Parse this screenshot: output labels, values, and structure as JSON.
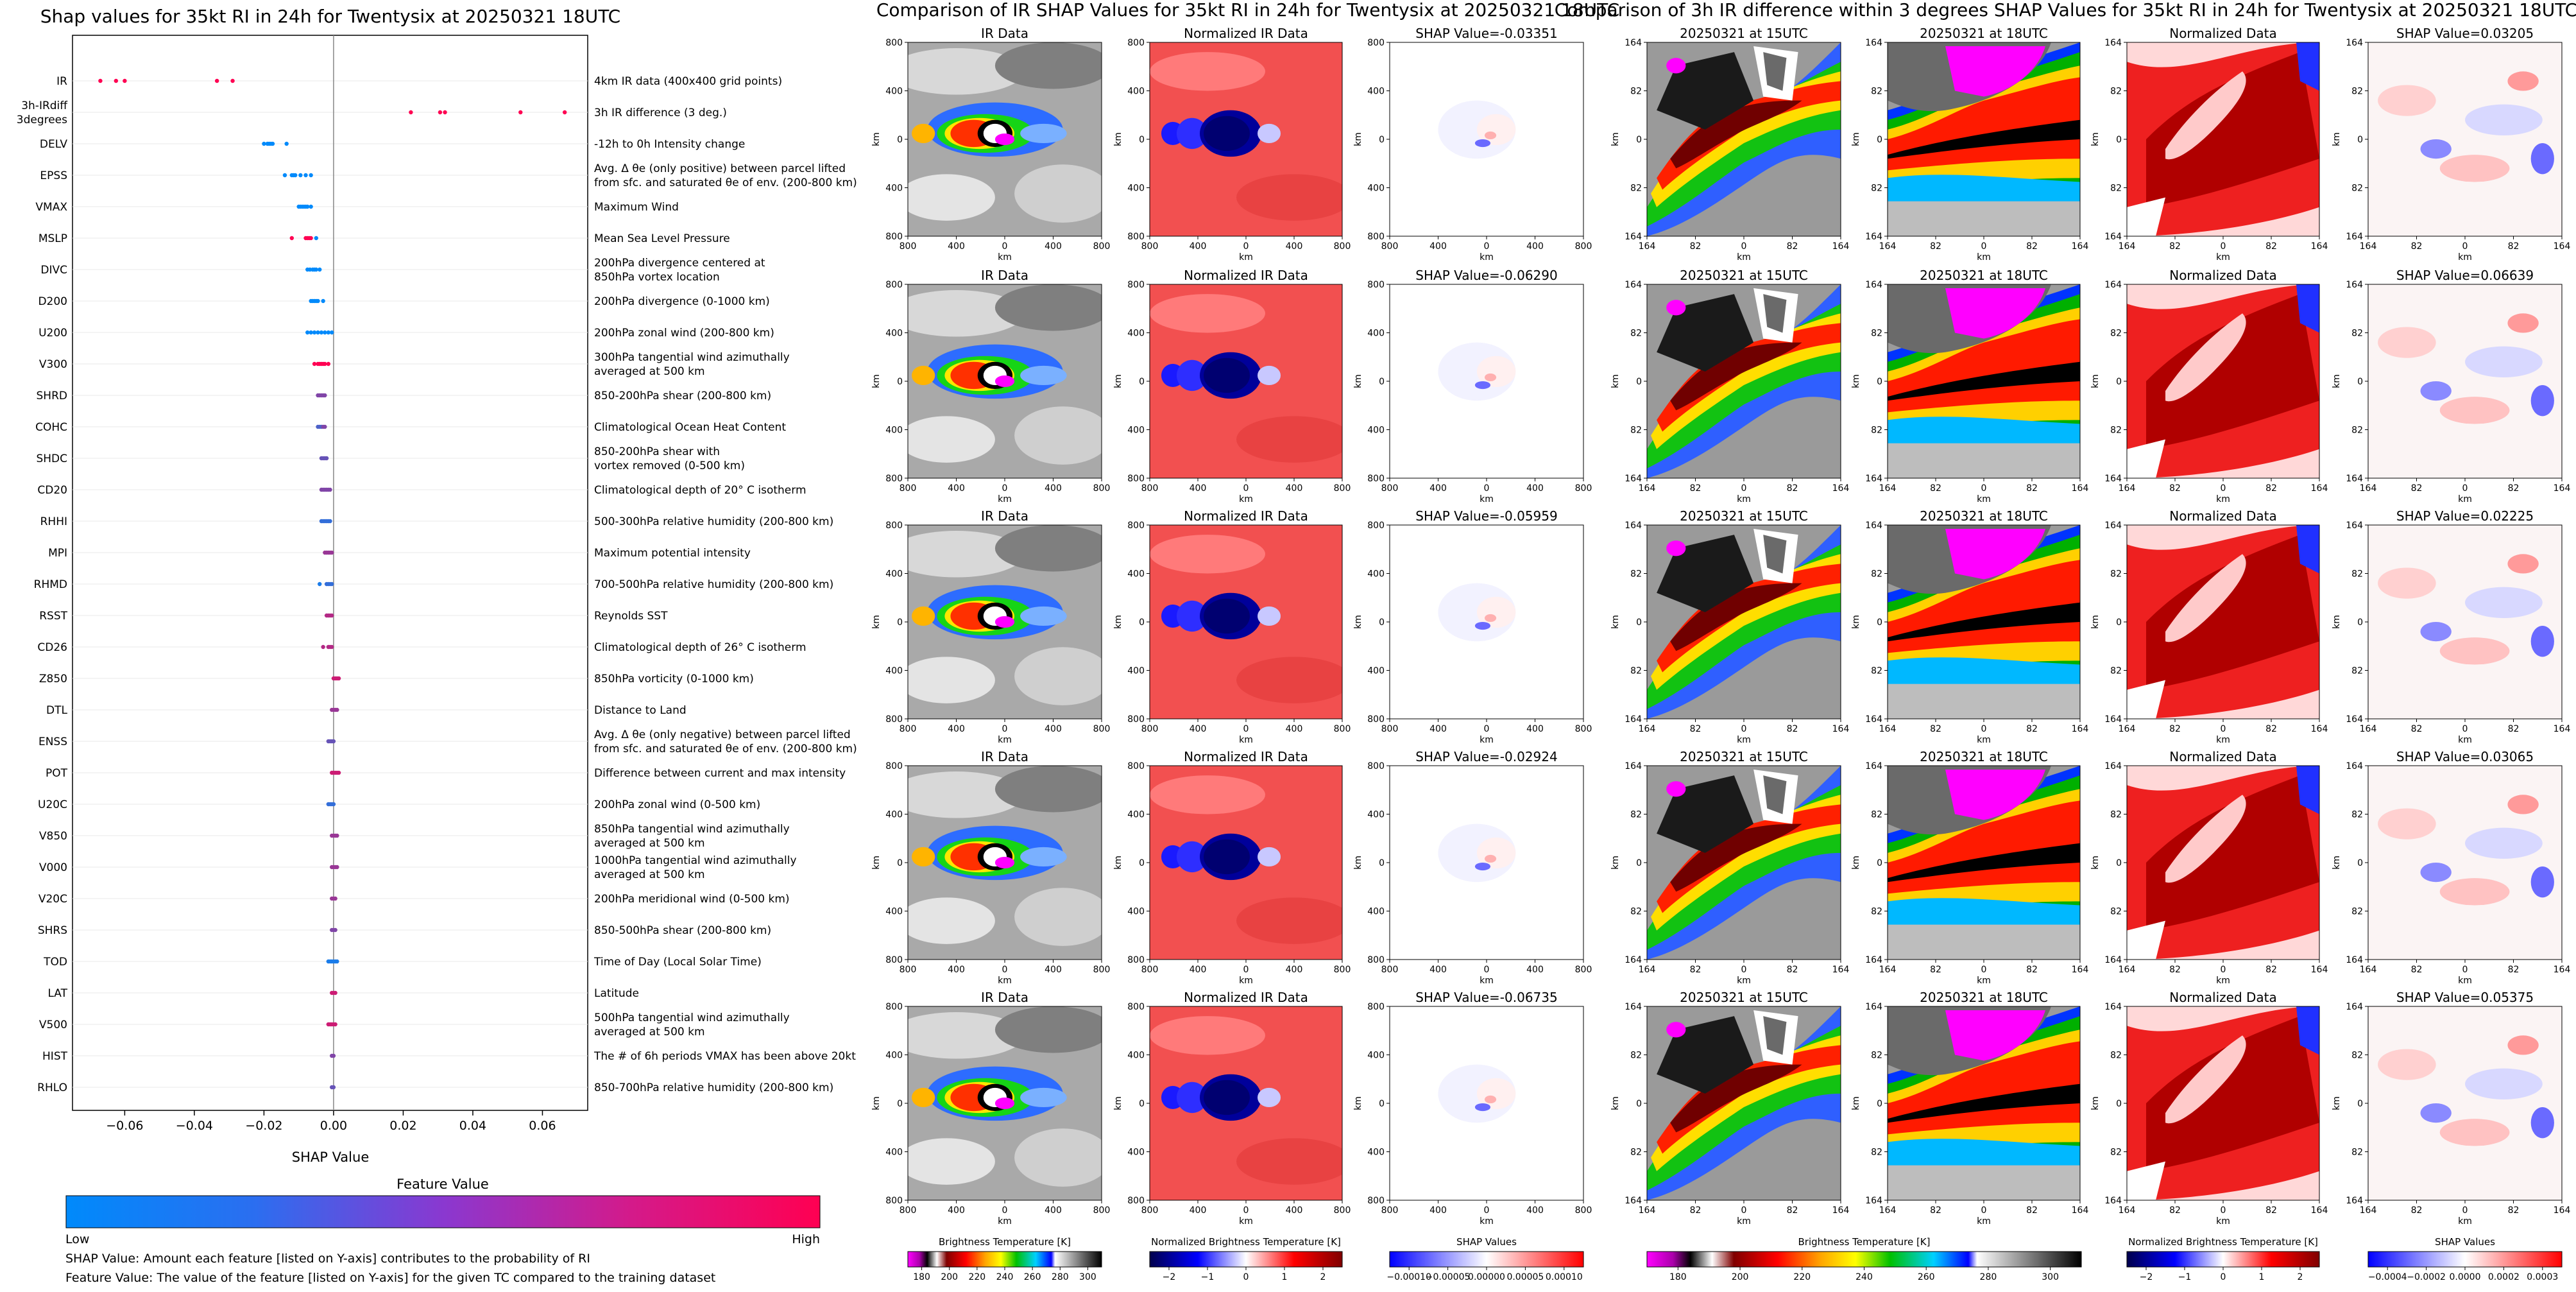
{
  "left": {
    "title": "Shap values for 35kt RI in 24h for Twentysix at 20250321 18UTC",
    "xlabel": "SHAP Value",
    "colorbar_title": "Feature Value",
    "colorbar_low": "Low",
    "colorbar_high": "High",
    "note1": "SHAP Value: Amount each feature [listed on Y-axis] contributes to the probability of RI",
    "note2": "Feature Value: The value of the feature [listed on Y-axis] for the given TC compared to the training dataset"
  },
  "mid": {
    "title": "Comparison of IR SHAP Values for 35kt RI in 24h for Twentysix at 20250321 18UTC",
    "col_titles": [
      "IR Data",
      "Normalized IR Data"
    ],
    "shap_titles": [
      "SHAP Value=-0.03351",
      "SHAP Value=-0.06290",
      "SHAP Value=-0.05959",
      "SHAP Value=-0.02924",
      "SHAP Value=-0.06735"
    ],
    "x_ticks": [
      "800",
      "400",
      "0",
      "400",
      "800"
    ],
    "y_ticks": [
      "800",
      "400",
      "0",
      "400",
      "800"
    ],
    "axis_label": "km",
    "cbars": [
      {
        "label": "Brightness Temperature [K]",
        "ticks": [
          "180",
          "200",
          "220",
          "240",
          "260",
          "280",
          "300"
        ]
      },
      {
        "label": "Normalized Brightness Temperature [K]",
        "ticks": [
          "−2",
          "−1",
          "0",
          "1",
          "2"
        ]
      },
      {
        "label": "SHAP Values",
        "ticks": [
          "−0.00010",
          "−0.00005",
          "0.00000",
          "0.00005",
          "0.00010"
        ]
      }
    ]
  },
  "right": {
    "title": "Comparison of 3h IR difference within 3 degrees SHAP Values for 35kt RI in 24h for Twentysix at 20250321 18UTC",
    "col_titles": [
      "20250321 at 15UTC",
      "20250321 at 18UTC",
      "Normalized Data"
    ],
    "shap_titles": [
      "SHAP Value=0.03205",
      "SHAP Value=0.06639",
      "SHAP Value=0.02225",
      "SHAP Value=0.03065",
      "SHAP Value=0.05375"
    ],
    "x_ticks": [
      "164",
      "82",
      "0",
      "82",
      "164"
    ],
    "y_ticks": [
      "164",
      "82",
      "0",
      "82",
      "164"
    ],
    "axis_label": "km",
    "cbars": [
      {
        "label": "Brightness Temperature [K]",
        "ticks": [
          "180",
          "200",
          "220",
          "240",
          "260",
          "280",
          "300"
        ]
      },
      {
        "label": "Normalized Brightness Temperature [K]",
        "ticks": [
          "−2",
          "−1",
          "0",
          "1",
          "2"
        ]
      },
      {
        "label": "SHAP Values",
        "ticks": [
          "−0.0004",
          "−0.0002",
          "0.0000",
          "0.0002",
          "0.0003"
        ]
      }
    ]
  },
  "colors": {
    "low": "#1e88e5",
    "high": "#ff0052",
    "zero_line": "#888888"
  },
  "chart_data": {
    "type": "scatter",
    "title": "Shap values for 35kt RI in 24h for Twentysix at 20250321 18UTC",
    "xlabel": "SHAP Value",
    "ylabel": "",
    "xlim": [
      -0.075,
      0.073
    ],
    "x_ticks": [
      "−0.06",
      "−0.04",
      "−0.02",
      "0.00",
      "0.02",
      "0.04",
      "0.06"
    ],
    "x_tick_values": [
      -0.06,
      -0.04,
      -0.02,
      0.0,
      0.02,
      0.04,
      0.06
    ],
    "features": [
      {
        "name": "IR",
        "desc": [
          "4km IR data (400x400 grid points)"
        ],
        "points": [
          [
            -0.067,
            1
          ],
          [
            -0.0625,
            1
          ],
          [
            -0.06,
            1
          ],
          [
            -0.0335,
            1
          ],
          [
            -0.029,
            1
          ]
        ]
      },
      {
        "name": "3h-IRdiff\n3degrees",
        "desc": [
          "3h IR difference (3 deg.)"
        ],
        "points": [
          [
            0.0222,
            1
          ],
          [
            0.0306,
            1
          ],
          [
            0.032,
            1
          ],
          [
            0.0537,
            1
          ],
          [
            0.0664,
            1
          ]
        ]
      },
      {
        "name": "DELV",
        "desc": [
          "-12h to 0h Intensity change"
        ],
        "points": [
          [
            -0.02,
            0
          ],
          [
            -0.019,
            0
          ],
          [
            -0.0185,
            0
          ],
          [
            -0.018,
            0
          ],
          [
            -0.0175,
            0
          ],
          [
            -0.0135,
            0
          ]
        ]
      },
      {
        "name": "EPSS",
        "desc": [
          "Avg. Δ θe (only positive) between parcel lifted",
          "from sfc. and saturated θe of env. (200-800 km)"
        ],
        "points": [
          [
            -0.014,
            0
          ],
          [
            -0.012,
            0
          ],
          [
            -0.0115,
            0
          ],
          [
            -0.011,
            0
          ],
          [
            -0.0095,
            0
          ],
          [
            -0.008,
            0
          ],
          [
            -0.0065,
            0
          ]
        ]
      },
      {
        "name": "VMAX",
        "desc": [
          "Maximum Wind"
        ],
        "points": [
          [
            -0.01,
            0
          ],
          [
            -0.0095,
            0
          ],
          [
            -0.009,
            0
          ],
          [
            -0.0085,
            0
          ],
          [
            -0.008,
            0
          ],
          [
            -0.0075,
            0
          ],
          [
            -0.0065,
            0
          ]
        ]
      },
      {
        "name": "MSLP",
        "desc": [
          "Mean Sea Level Pressure"
        ],
        "points": [
          [
            -0.012,
            1
          ],
          [
            -0.008,
            1
          ],
          [
            -0.0075,
            1
          ],
          [
            -0.007,
            1
          ],
          [
            -0.0065,
            1
          ],
          [
            -0.005,
            0
          ]
        ]
      },
      {
        "name": "DIVC",
        "desc": [
          "200hPa divergence centered at",
          "850hPa vortex location"
        ],
        "points": [
          [
            -0.0075,
            0
          ],
          [
            -0.0068,
            0
          ],
          [
            -0.006,
            0
          ],
          [
            -0.0055,
            0
          ],
          [
            -0.005,
            0
          ],
          [
            -0.004,
            0
          ]
        ]
      },
      {
        "name": "D200",
        "desc": [
          "200hPa divergence (0-1000 km)"
        ],
        "points": [
          [
            -0.0065,
            0
          ],
          [
            -0.006,
            0
          ],
          [
            -0.0055,
            0
          ],
          [
            -0.005,
            0
          ],
          [
            -0.0045,
            0
          ],
          [
            -0.003,
            0
          ]
        ]
      },
      {
        "name": "U200",
        "desc": [
          "200hPa zonal wind (200-800 km)"
        ],
        "points": [
          [
            -0.0075,
            0
          ],
          [
            -0.0065,
            0
          ],
          [
            -0.0055,
            0
          ],
          [
            -0.0045,
            0
          ],
          [
            -0.0035,
            0
          ],
          [
            -0.0025,
            0
          ],
          [
            -0.0015,
            0
          ],
          [
            -0.0005,
            0
          ]
        ]
      },
      {
        "name": "V300",
        "desc": [
          "300hPa tangential wind azimuthally",
          "averaged at 500 km"
        ],
        "points": [
          [
            -0.0055,
            1
          ],
          [
            -0.0045,
            1
          ],
          [
            -0.004,
            1
          ],
          [
            -0.0035,
            1
          ],
          [
            -0.003,
            1
          ],
          [
            -0.0025,
            1
          ],
          [
            -0.0015,
            1
          ]
        ]
      },
      {
        "name": "SHRD",
        "desc": [
          "850-200hPa shear (200-800 km)"
        ],
        "points": [
          [
            -0.0045,
            0.5
          ],
          [
            -0.004,
            0.5
          ],
          [
            -0.0035,
            0.5
          ],
          [
            -0.003,
            0.5
          ],
          [
            -0.0025,
            0.5
          ]
        ]
      },
      {
        "name": "COHC",
        "desc": [
          "Climatological Ocean Heat Content"
        ],
        "points": [
          [
            -0.0045,
            0.3
          ],
          [
            -0.004,
            0.3
          ],
          [
            -0.0035,
            0.3
          ],
          [
            -0.003,
            0.5
          ],
          [
            -0.0025,
            0.5
          ]
        ]
      },
      {
        "name": "SHDC",
        "desc": [
          "850-200hPa shear with",
          "vortex removed (0-500 km)"
        ],
        "points": [
          [
            -0.0035,
            0.4
          ],
          [
            -0.003,
            0.4
          ],
          [
            -0.0025,
            0.4
          ],
          [
            -0.002,
            0.4
          ]
        ]
      },
      {
        "name": "CD20",
        "desc": [
          "Climatological depth of 20° C isotherm"
        ],
        "points": [
          [
            -0.0035,
            0.5
          ],
          [
            -0.003,
            0.5
          ],
          [
            -0.0025,
            0.5
          ],
          [
            -0.002,
            0.5
          ],
          [
            -0.0015,
            0.5
          ],
          [
            -0.001,
            0.5
          ]
        ]
      },
      {
        "name": "RHHI",
        "desc": [
          "500-300hPa relative humidity (200-800 km)"
        ],
        "points": [
          [
            -0.0035,
            0.2
          ],
          [
            -0.003,
            0.2
          ],
          [
            -0.0025,
            0.2
          ],
          [
            -0.002,
            0.2
          ],
          [
            -0.0015,
            0.2
          ],
          [
            -0.001,
            0.2
          ]
        ]
      },
      {
        "name": "MPI",
        "desc": [
          "Maximum potential intensity"
        ],
        "points": [
          [
            -0.0025,
            0.6
          ],
          [
            -0.002,
            0.6
          ],
          [
            -0.0015,
            0.6
          ],
          [
            -0.001,
            0.6
          ],
          [
            -0.0005,
            0.6
          ]
        ]
      },
      {
        "name": "RHMD",
        "desc": [
          "700-500hPa relative humidity (200-800 km)"
        ],
        "points": [
          [
            -0.004,
            0.1
          ],
          [
            -0.002,
            0.2
          ],
          [
            -0.0015,
            0.2
          ],
          [
            -0.001,
            0.2
          ],
          [
            -0.0005,
            0.2
          ]
        ]
      },
      {
        "name": "RSST",
        "desc": [
          "Reynolds SST"
        ],
        "points": [
          [
            -0.002,
            0.7
          ],
          [
            -0.0015,
            0.7
          ],
          [
            -0.001,
            0.7
          ],
          [
            -0.0005,
            0.7
          ]
        ]
      },
      {
        "name": "CD26",
        "desc": [
          "Climatological depth of 26° C isotherm"
        ],
        "points": [
          [
            -0.003,
            0.7
          ],
          [
            -0.0015,
            0.7
          ],
          [
            -0.001,
            0.7
          ],
          [
            -0.0005,
            0.7
          ]
        ]
      },
      {
        "name": "Z850",
        "desc": [
          "850hPa vorticity (0-1000 km)"
        ],
        "points": [
          [
            0.0,
            0.8
          ],
          [
            0.0005,
            0.8
          ],
          [
            0.001,
            0.8
          ],
          [
            0.0015,
            0.8
          ]
        ]
      },
      {
        "name": "DTL",
        "desc": [
          "Distance to Land"
        ],
        "points": [
          [
            -0.0005,
            0.6
          ],
          [
            0.0,
            0.6
          ],
          [
            0.0005,
            0.6
          ],
          [
            0.001,
            0.6
          ]
        ]
      },
      {
        "name": "ENSS",
        "desc": [
          "Avg. Δ θe (only negative) between parcel lifted",
          "from sfc. and saturated θe of env. (200-800 km)"
        ],
        "points": [
          [
            -0.0015,
            0.4
          ],
          [
            -0.001,
            0.4
          ],
          [
            -0.0005,
            0.4
          ],
          [
            0.0,
            0.4
          ]
        ]
      },
      {
        "name": "POT",
        "desc": [
          "Difference between current and max intensity"
        ],
        "points": [
          [
            -0.0005,
            0.8
          ],
          [
            0.0,
            0.8
          ],
          [
            0.0005,
            0.8
          ],
          [
            0.001,
            0.8
          ],
          [
            0.0015,
            0.8
          ]
        ]
      },
      {
        "name": "U20C",
        "desc": [
          "200hPa zonal wind (0-500 km)"
        ],
        "points": [
          [
            -0.0015,
            0.2
          ],
          [
            -0.001,
            0.2
          ],
          [
            -0.0005,
            0.2
          ],
          [
            0.0,
            0.2
          ]
        ]
      },
      {
        "name": "V850",
        "desc": [
          "850hPa tangential wind azimuthally",
          "averaged at 500 km"
        ],
        "points": [
          [
            -0.0005,
            0.6
          ],
          [
            0.0,
            0.6
          ],
          [
            0.0005,
            0.6
          ],
          [
            0.001,
            0.6
          ]
        ]
      },
      {
        "name": "V000",
        "desc": [
          "1000hPa tangential wind azimuthally",
          "averaged at 500 km"
        ],
        "points": [
          [
            -0.0005,
            0.6
          ],
          [
            0.0,
            0.6
          ],
          [
            0.0005,
            0.6
          ],
          [
            0.001,
            0.6
          ]
        ]
      },
      {
        "name": "V20C",
        "desc": [
          "200hPa meridional wind (0-500 km)"
        ],
        "points": [
          [
            -0.0005,
            0.6
          ],
          [
            0.0,
            0.6
          ],
          [
            0.0005,
            0.6
          ]
        ]
      },
      {
        "name": "SHRS",
        "desc": [
          "850-500hPa shear (200-800 km)"
        ],
        "points": [
          [
            -0.0005,
            0.5
          ],
          [
            0.0,
            0.5
          ],
          [
            0.0005,
            0.5
          ]
        ]
      },
      {
        "name": "TOD",
        "desc": [
          "Time of Day (Local Solar Time)"
        ],
        "points": [
          [
            -0.0015,
            0.1
          ],
          [
            -0.001,
            0.1
          ],
          [
            -0.0005,
            0.1
          ],
          [
            0.0,
            0.1
          ],
          [
            0.0005,
            0.1
          ],
          [
            0.001,
            0.1
          ]
        ]
      },
      {
        "name": "LAT",
        "desc": [
          "Latitude"
        ],
        "points": [
          [
            -0.0005,
            0.8
          ],
          [
            0.0,
            0.8
          ],
          [
            0.0005,
            0.8
          ]
        ]
      },
      {
        "name": "V500",
        "desc": [
          "500hPa tangential wind azimuthally",
          "averaged at 500 km"
        ],
        "points": [
          [
            -0.0015,
            0.8
          ],
          [
            -0.001,
            0.8
          ],
          [
            -0.0005,
            0.8
          ],
          [
            0.0,
            0.8
          ],
          [
            0.0005,
            0.8
          ]
        ]
      },
      {
        "name": "HIST",
        "desc": [
          "The # of 6h periods VMAX has been above 20kt"
        ],
        "points": [
          [
            -0.0005,
            0.5
          ],
          [
            0.0,
            0.5
          ]
        ]
      },
      {
        "name": "RHLO",
        "desc": [
          "850-700hPa relative humidity (200-800 km)"
        ],
        "points": [
          [
            -0.0005,
            0.4
          ],
          [
            0.0,
            0.4
          ]
        ]
      }
    ]
  }
}
